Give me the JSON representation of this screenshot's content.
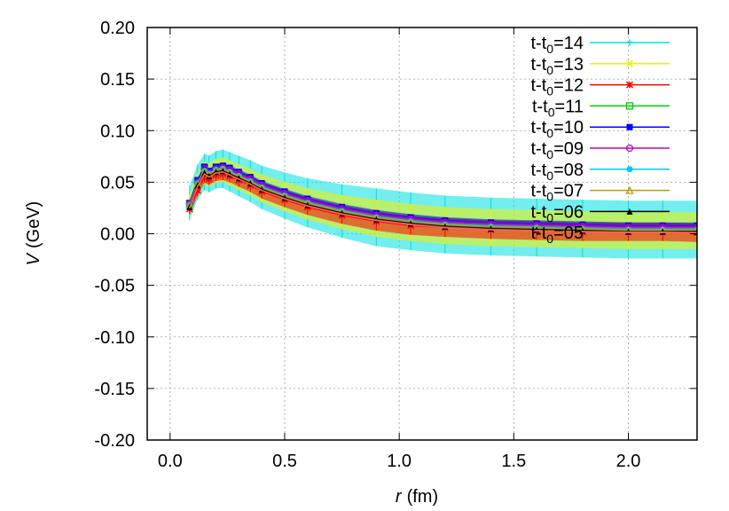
{
  "chart_data": {
    "type": "line",
    "xlabel_var": "r",
    "xlabel_unit": "(fm)",
    "ylabel_var": "V",
    "ylabel_unit": "(GeV)",
    "xlim": [
      -0.1,
      2.3
    ],
    "ylim": [
      -0.2,
      0.2
    ],
    "x_ticks": [
      0.0,
      0.5,
      1.0,
      1.5,
      2.0
    ],
    "x_tick_labels": [
      "0.0",
      "0.5",
      "1.0",
      "1.5",
      "2.0"
    ],
    "y_ticks": [
      0.2,
      0.15,
      0.1,
      0.05,
      0.0,
      -0.05,
      -0.1,
      -0.15,
      -0.2
    ],
    "y_tick_labels": [
      "0.20",
      "0.15",
      "0.10",
      "0.05",
      "0.00",
      "-0.05",
      "-0.10",
      "-0.15",
      "-0.20"
    ],
    "grid": true,
    "legend_position": "top-right",
    "x": [
      0.085,
      0.12,
      0.15,
      0.17,
      0.2,
      0.23,
      0.26,
      0.3,
      0.35,
      0.4,
      0.5,
      0.6,
      0.75,
      0.9,
      1.05,
      1.2,
      1.4,
      1.6,
      1.8,
      2.0,
      2.15,
      2.3
    ],
    "series": [
      {
        "name_prefix": "t-t",
        "name_sub": "0",
        "name_suffix": "=14",
        "color": "#00e0e0",
        "marker": "plus",
        "error": 0.028,
        "values": [
          0.03,
          0.05,
          0.06,
          0.058,
          0.062,
          0.063,
          0.06,
          0.056,
          0.051,
          0.045,
          0.037,
          0.03,
          0.022,
          0.016,
          0.012,
          0.009,
          0.007,
          0.006,
          0.005,
          0.004,
          0.004,
          0.004
        ]
      },
      {
        "name_prefix": "t-t",
        "name_sub": "0",
        "name_suffix": "=13",
        "color": "#f0f000",
        "marker": "x",
        "error": 0.018,
        "values": [
          0.028,
          0.048,
          0.059,
          0.057,
          0.061,
          0.062,
          0.059,
          0.055,
          0.05,
          0.044,
          0.036,
          0.029,
          0.021,
          0.015,
          0.011,
          0.008,
          0.006,
          0.005,
          0.004,
          0.003,
          0.003,
          0.003
        ]
      },
      {
        "name_prefix": "t-t",
        "name_sub": "0",
        "name_suffix": "=12",
        "color": "#ff0000",
        "marker": "star",
        "error": 0.009,
        "values": [
          0.024,
          0.042,
          0.055,
          0.053,
          0.057,
          0.058,
          0.056,
          0.052,
          0.047,
          0.041,
          0.033,
          0.026,
          0.018,
          0.012,
          0.008,
          0.006,
          0.004,
          0.003,
          0.002,
          0.002,
          0.002,
          0.001
        ]
      },
      {
        "name_prefix": "t-t",
        "name_sub": "0",
        "name_suffix": "=11",
        "color": "#00d000",
        "marker": "square-open",
        "error": 0.004,
        "values": [
          0.029,
          0.051,
          0.064,
          0.06,
          0.064,
          0.065,
          0.062,
          0.058,
          0.053,
          0.047,
          0.039,
          0.032,
          0.024,
          0.018,
          0.014,
          0.011,
          0.009,
          0.008,
          0.007,
          0.006,
          0.006,
          0.006
        ]
      },
      {
        "name_prefix": "t-t",
        "name_sub": "0",
        "name_suffix": "=10",
        "color": "#0000ff",
        "marker": "square-filled",
        "error": 0.003,
        "values": [
          0.03,
          0.052,
          0.065,
          0.061,
          0.065,
          0.066,
          0.064,
          0.06,
          0.055,
          0.049,
          0.041,
          0.034,
          0.026,
          0.02,
          0.016,
          0.013,
          0.011,
          0.01,
          0.009,
          0.008,
          0.008,
          0.008
        ]
      },
      {
        "name_prefix": "t-t",
        "name_sub": "0",
        "name_suffix": "=09",
        "color": "#c000c0",
        "marker": "circle-open",
        "error": 0.003,
        "values": [
          0.029,
          0.05,
          0.063,
          0.059,
          0.063,
          0.064,
          0.062,
          0.058,
          0.053,
          0.047,
          0.039,
          0.032,
          0.024,
          0.018,
          0.014,
          0.011,
          0.009,
          0.008,
          0.007,
          0.006,
          0.006,
          0.006
        ]
      },
      {
        "name_prefix": "t-t",
        "name_sub": "0",
        "name_suffix": "=08",
        "color": "#00c8e8",
        "marker": "circle-filled",
        "error": 0.002,
        "values": [
          0.028,
          0.049,
          0.061,
          0.058,
          0.062,
          0.063,
          0.06,
          0.056,
          0.051,
          0.045,
          0.037,
          0.03,
          0.022,
          0.016,
          0.012,
          0.009,
          0.007,
          0.006,
          0.005,
          0.004,
          0.004,
          0.004
        ]
      },
      {
        "name_prefix": "t-t",
        "name_sub": "0",
        "name_suffix": "=07",
        "color": "#b8a000",
        "marker": "triangle-open",
        "error": 0.002,
        "values": [
          0.027,
          0.048,
          0.06,
          0.057,
          0.061,
          0.062,
          0.059,
          0.055,
          0.05,
          0.044,
          0.036,
          0.029,
          0.021,
          0.015,
          0.011,
          0.008,
          0.006,
          0.005,
          0.004,
          0.003,
          0.003,
          0.003
        ]
      },
      {
        "name_prefix": "t-t",
        "name_sub": "0",
        "name_suffix": "=06",
        "color": "#000000",
        "marker": "triangle-filled",
        "error": 0.001,
        "values": [
          0.026,
          0.047,
          0.059,
          0.056,
          0.06,
          0.061,
          0.058,
          0.054,
          0.049,
          0.043,
          0.035,
          0.028,
          0.02,
          0.014,
          0.01,
          0.007,
          0.005,
          0.004,
          0.003,
          0.002,
          0.002,
          0.002
        ]
      },
      {
        "name_prefix": "t-t",
        "name_sub": "0",
        "name_suffix": "=05",
        "color": "#ff6060",
        "marker": "none",
        "error": 0.001,
        "values": [
          0.025,
          0.046,
          0.058,
          0.055,
          0.059,
          0.06,
          0.057,
          0.053,
          0.048,
          0.042,
          0.034,
          0.027,
          0.019,
          0.013,
          0.009,
          0.006,
          0.004,
          0.003,
          0.002,
          0.0015,
          0.0015,
          0.001
        ]
      }
    ]
  }
}
